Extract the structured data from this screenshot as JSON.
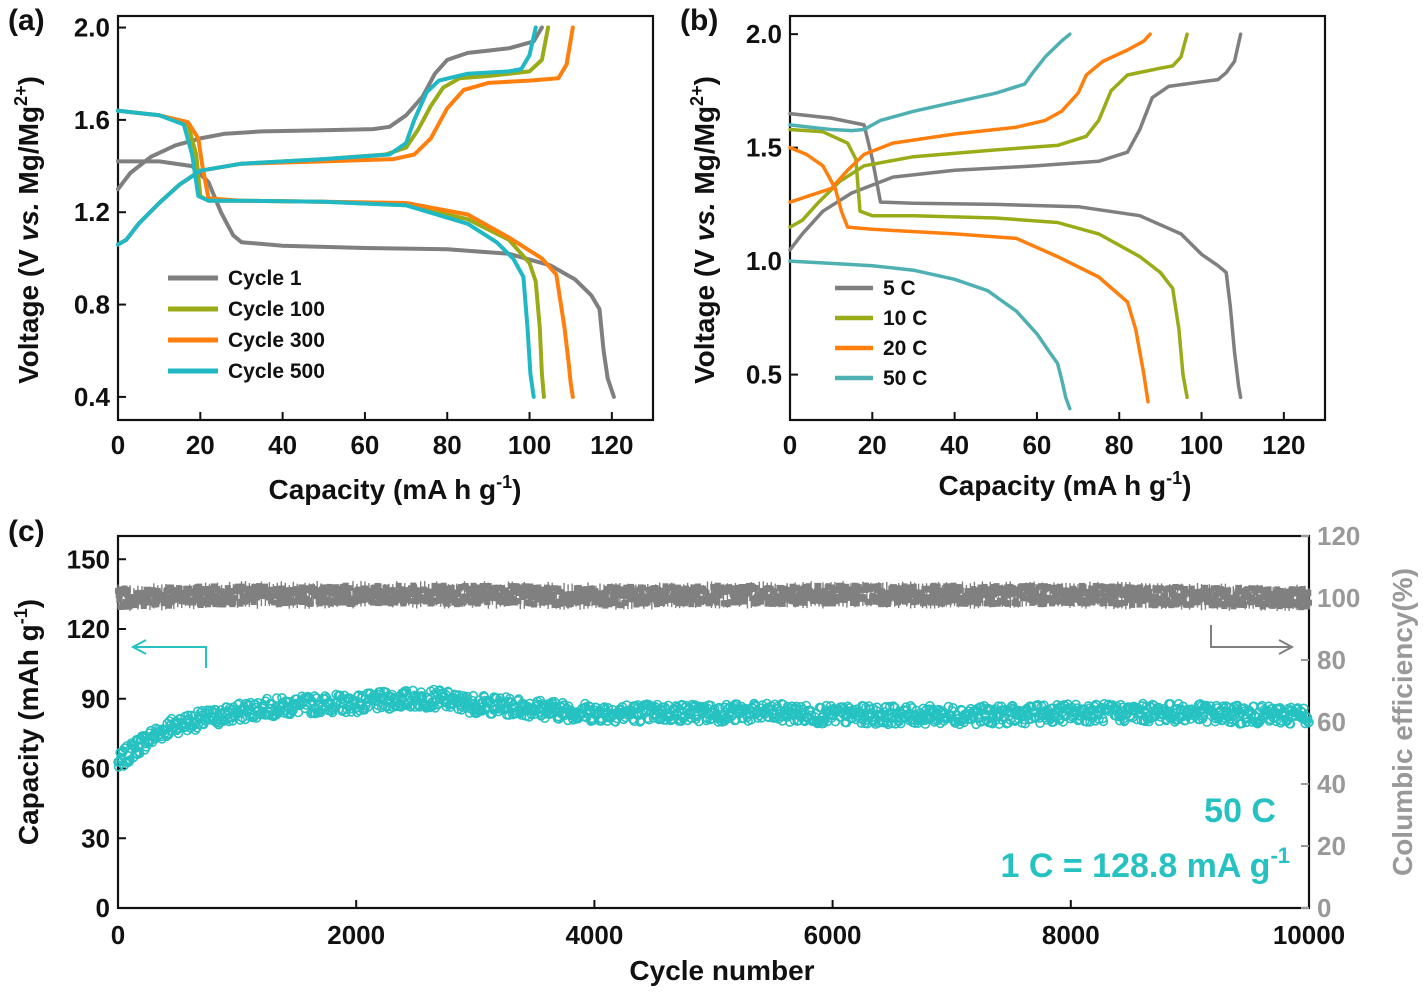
{
  "chart_data": [
    {
      "panel": "(a)",
      "type": "line",
      "xlabel": "Capacity",
      "xlabel_unit": "(mA h g",
      "xlabel_sup": "-1",
      "xlabel_close": ")",
      "ylabel_a": "Voltage (V ",
      "ylabel_vs": "vs.",
      "ylabel_b": " Mg/Mg",
      "ylabel_sup": "2+",
      "ylabel_close": ")",
      "xlim": [
        0,
        130
      ],
      "ylim": [
        0.3,
        2.05
      ],
      "xticks": [
        "0",
        "20",
        "40",
        "60",
        "80",
        "100",
        "120"
      ],
      "yticks": [
        "0.4",
        "0.8",
        "1.2",
        "1.6",
        "2.0"
      ],
      "legend_position": "bottom-left",
      "colors": {
        "Cycle 1": "#7f7f7f",
        "Cycle 100": "#9aab18",
        "Cycle 300": "#ff7f0e",
        "Cycle 500": "#1fb8c4"
      },
      "series": [
        {
          "name": "Cycle 1",
          "color": "#7f7f7f",
          "segments": [
            {
              "x": [
                0,
                3,
                8,
                14,
                20,
                26,
                35,
                50,
                62,
                66,
                70,
                74,
                77,
                80,
                85,
                90,
                95,
                101,
                103
              ],
              "y": [
                1.3,
                1.37,
                1.44,
                1.49,
                1.52,
                1.54,
                1.55,
                1.555,
                1.56,
                1.57,
                1.62,
                1.7,
                1.8,
                1.86,
                1.89,
                1.9,
                1.91,
                1.94,
                2.0
              ]
            },
            {
              "x": [
                0,
                10,
                18,
                22,
                25,
                28,
                30,
                40,
                60,
                80,
                95,
                105,
                111,
                115,
                117,
                118,
                119,
                120.5
              ],
              "y": [
                1.42,
                1.42,
                1.4,
                1.33,
                1.2,
                1.1,
                1.07,
                1.055,
                1.045,
                1.04,
                1.02,
                0.97,
                0.91,
                0.84,
                0.78,
                0.6,
                0.48,
                0.4
              ]
            }
          ]
        },
        {
          "name": "Cycle 100",
          "color": "#9aab18",
          "segments": [
            {
              "x": [
                0,
                2,
                5,
                10,
                15,
                20,
                30,
                50,
                65,
                70,
                73,
                76,
                79,
                83,
                90,
                100,
                103,
                104.5
              ],
              "y": [
                1.06,
                1.08,
                1.15,
                1.24,
                1.32,
                1.38,
                1.41,
                1.43,
                1.45,
                1.48,
                1.56,
                1.66,
                1.74,
                1.78,
                1.79,
                1.81,
                1.86,
                2.0
              ]
            },
            {
              "x": [
                0,
                10,
                17,
                19,
                20,
                22,
                30,
                50,
                70,
                85,
                95,
                100,
                101.5,
                102.5,
                103,
                103.5
              ],
              "y": [
                1.64,
                1.62,
                1.58,
                1.45,
                1.27,
                1.25,
                1.25,
                1.245,
                1.23,
                1.17,
                1.08,
                0.98,
                0.9,
                0.7,
                0.5,
                0.4
              ]
            }
          ]
        },
        {
          "name": "Cycle 300",
          "color": "#ff7f0e",
          "segments": [
            {
              "x": [
                0,
                2,
                5,
                10,
                15,
                20,
                30,
                50,
                67,
                72,
                76,
                80,
                84,
                90,
                100,
                107,
                109,
                110.5
              ],
              "y": [
                1.06,
                1.08,
                1.15,
                1.24,
                1.32,
                1.38,
                1.41,
                1.42,
                1.43,
                1.45,
                1.52,
                1.65,
                1.73,
                1.76,
                1.77,
                1.78,
                1.84,
                2.0
              ]
            },
            {
              "x": [
                0,
                10,
                17,
                19.5,
                20.5,
                22,
                30,
                50,
                70,
                85,
                95,
                103,
                106.5,
                108.5,
                109.5,
                110,
                110.5
              ],
              "y": [
                1.64,
                1.62,
                1.59,
                1.52,
                1.4,
                1.26,
                1.25,
                1.245,
                1.24,
                1.19,
                1.09,
                1.0,
                0.93,
                0.7,
                0.55,
                0.46,
                0.4
              ]
            }
          ]
        },
        {
          "name": "Cycle 500",
          "color": "#1fb8c4",
          "segments": [
            {
              "x": [
                0,
                2,
                5,
                10,
                15,
                20,
                30,
                50,
                66,
                70,
                72,
                75,
                78,
                85,
                95,
                98,
                100,
                101.5
              ],
              "y": [
                1.06,
                1.08,
                1.15,
                1.24,
                1.32,
                1.38,
                1.41,
                1.43,
                1.45,
                1.5,
                1.6,
                1.72,
                1.77,
                1.8,
                1.81,
                1.82,
                1.88,
                2.0
              ]
            },
            {
              "x": [
                0,
                10,
                16,
                18,
                19.5,
                22,
                30,
                50,
                70,
                85,
                92,
                96,
                98.5,
                99.5,
                100.2,
                101
              ],
              "y": [
                1.64,
                1.62,
                1.58,
                1.45,
                1.27,
                1.25,
                1.25,
                1.245,
                1.23,
                1.15,
                1.07,
                1.0,
                0.92,
                0.7,
                0.5,
                0.4
              ]
            }
          ]
        }
      ]
    },
    {
      "panel": "(b)",
      "type": "line",
      "xlabel": "Capacity",
      "xlabel_unit": "(mA h g",
      "xlabel_sup": "-1",
      "xlabel_close": ")",
      "ylabel_a": "Voltage (V ",
      "ylabel_vs": "vs.",
      "ylabel_b": " Mg/Mg",
      "ylabel_sup": "2+",
      "ylabel_close": ")",
      "xlim": [
        0,
        130
      ],
      "ylim": [
        0.3,
        2.08
      ],
      "xticks": [
        "0",
        "20",
        "40",
        "60",
        "80",
        "100",
        "120"
      ],
      "yticks": [
        "0.5",
        "1.0",
        "1.5",
        "2.0"
      ],
      "legend_position": "bottom-left",
      "colors": {
        "5 C": "#7f7f7f",
        "10 C": "#9aab18",
        "20 C": "#ff7f0e",
        "50 C": "#4fb0b2"
      },
      "series": [
        {
          "name": "5 C",
          "color": "#7f7f7f",
          "segments": [
            {
              "x": [
                0,
                3,
                8,
                15,
                25,
                40,
                60,
                75,
                82,
                85,
                88,
                92,
                100,
                104,
                106,
                108,
                109.5
              ],
              "y": [
                1.05,
                1.12,
                1.22,
                1.3,
                1.37,
                1.4,
                1.42,
                1.44,
                1.48,
                1.58,
                1.72,
                1.77,
                1.79,
                1.8,
                1.83,
                1.88,
                2.0
              ]
            },
            {
              "x": [
                0,
                10,
                18,
                20,
                22,
                30,
                50,
                70,
                85,
                95,
                100,
                104,
                106,
                107,
                108,
                109,
                109.5
              ],
              "y": [
                1.65,
                1.63,
                1.6,
                1.45,
                1.26,
                1.255,
                1.25,
                1.24,
                1.2,
                1.12,
                1.03,
                0.98,
                0.95,
                0.8,
                0.6,
                0.45,
                0.4
              ]
            }
          ]
        },
        {
          "name": "10 C",
          "color": "#9aab18",
          "segments": [
            {
              "x": [
                0,
                3,
                7,
                12,
                18,
                30,
                50,
                65,
                72,
                75,
                78,
                82,
                90,
                93,
                95,
                96.5
              ],
              "y": [
                1.15,
                1.18,
                1.26,
                1.35,
                1.42,
                1.46,
                1.49,
                1.51,
                1.55,
                1.62,
                1.75,
                1.82,
                1.85,
                1.86,
                1.9,
                2.0
              ]
            },
            {
              "x": [
                0,
                8,
                14,
                16,
                17,
                20,
                30,
                50,
                65,
                75,
                85,
                90,
                93,
                94.5,
                95.5,
                96.5
              ],
              "y": [
                1.58,
                1.57,
                1.52,
                1.45,
                1.22,
                1.2,
                1.2,
                1.19,
                1.17,
                1.12,
                1.02,
                0.95,
                0.88,
                0.7,
                0.5,
                0.4
              ]
            }
          ]
        },
        {
          "name": "20 C",
          "color": "#ff7f0e",
          "segments": [
            {
              "x": [
                0,
                5,
                10,
                14,
                18,
                25,
                40,
                55,
                62,
                66,
                70,
                72,
                76,
                82,
                86,
                87.5
              ],
              "y": [
                1.26,
                1.29,
                1.32,
                1.4,
                1.47,
                1.52,
                1.56,
                1.59,
                1.62,
                1.66,
                1.74,
                1.82,
                1.88,
                1.93,
                1.97,
                2.0
              ]
            },
            {
              "x": [
                0,
                4,
                8,
                11,
                12.5,
                14,
                20,
                40,
                55,
                65,
                75,
                82,
                84,
                85,
                86,
                87
              ],
              "y": [
                1.5,
                1.47,
                1.42,
                1.32,
                1.22,
                1.15,
                1.14,
                1.12,
                1.1,
                1.02,
                0.93,
                0.82,
                0.7,
                0.6,
                0.5,
                0.38
              ]
            }
          ]
        },
        {
          "name": "50 C",
          "color": "#4fb0b2",
          "segments": [
            {
              "x": [
                0,
                5,
                10,
                15,
                18,
                22,
                30,
                40,
                50,
                57,
                59,
                62,
                66,
                68
              ],
              "y": [
                1.6,
                1.59,
                1.58,
                1.575,
                1.58,
                1.62,
                1.66,
                1.7,
                1.74,
                1.78,
                1.83,
                1.9,
                1.97,
                2.0
              ]
            },
            {
              "x": [
                0,
                10,
                20,
                30,
                40,
                48,
                55,
                60,
                63,
                65,
                66,
                67,
                68
              ],
              "y": [
                1.0,
                0.99,
                0.98,
                0.96,
                0.92,
                0.87,
                0.78,
                0.68,
                0.6,
                0.55,
                0.48,
                0.4,
                0.35
              ]
            }
          ]
        }
      ]
    },
    {
      "panel": "(c)",
      "type": "scatter",
      "xlabel": "Cycle number",
      "ylabel_left": "Capacity (mAh g",
      "ylabel_left_sup": "-1",
      "ylabel_left_close": ")",
      "ylabel_right": "Columbic efficiency(%)",
      "xlim": [
        0,
        10000
      ],
      "ylim_left": [
        0,
        160
      ],
      "ylim_right": [
        0,
        120
      ],
      "xticks": [
        "0",
        "2000",
        "4000",
        "6000",
        "8000",
        "10000"
      ],
      "yticks_left": [
        "0",
        "30",
        "60",
        "90",
        "120",
        "150"
      ],
      "yticks_right": [
        "0",
        "20",
        "40",
        "60",
        "80",
        "100",
        "120"
      ],
      "annotation_rate": "50 C",
      "annotation_def": "1 C = 128.8 mA g",
      "annotation_def_sup": "-1",
      "colors": {
        "capacity": "#26c2c2",
        "efficiency": "#808080"
      },
      "series": [
        {
          "role": "Capacity",
          "axis": "left",
          "color": "#26c2c2",
          "x": [
            0,
            100,
            200,
            300,
            400,
            500,
            600,
            700,
            800,
            1000,
            1200,
            1500,
            1800,
            2000,
            2200,
            2500,
            2700,
            2900,
            3200,
            3500,
            3700,
            4000,
            4500,
            5000,
            5500,
            6000,
            6500,
            7000,
            7500,
            8000,
            8500,
            9000,
            9500,
            10000
          ],
          "y": [
            62,
            67,
            71,
            74,
            77,
            79,
            80,
            81,
            82,
            84,
            86,
            87,
            88,
            88,
            89,
            90,
            90,
            88,
            87,
            86,
            85,
            84,
            84,
            84,
            84,
            83,
            83,
            83,
            83,
            84,
            84,
            84,
            83,
            83
          ],
          "spread": 4
        },
        {
          "role": "Columbic efficiency",
          "axis": "right",
          "color": "#808080",
          "x": [
            0,
            1000,
            2000,
            3000,
            4000,
            5000,
            6000,
            7000,
            8000,
            9000,
            10000
          ],
          "y": [
            100,
            101,
            101,
            101,
            100.5,
            101,
            101,
            101,
            101,
            100.5,
            100
          ],
          "spread": 3
        }
      ]
    }
  ]
}
